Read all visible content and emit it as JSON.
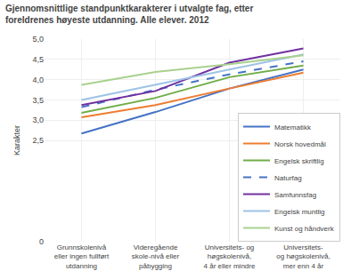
{
  "chart_data": {
    "type": "line",
    "title": "Gjennomsnittlige standpunktkarakterer i utvalgte fag, etter\nforeldrenes høyeste utdanning. Alle elever. 2012",
    "ylabel": "Karakter",
    "categories": [
      "Grunnskolenivå\neller ingen fullført\nutdanning",
      "Videregående\nskole-nivå eller\npåbygging",
      "Universitets- og\nhøgskolenivå,\n4 år eller mindre",
      "Universitets-\nog høgskolenivå,\nmer enn 4 år"
    ],
    "ylim": [
      0,
      5.0
    ],
    "yticks": [
      0,
      {
        "value": 2.5,
        "label": "2,5"
      },
      {
        "value": 3.0,
        "label": "3,0"
      },
      {
        "value": 3.5,
        "label": "3,5"
      },
      {
        "value": 4.0,
        "label": "4,0"
      },
      {
        "value": 4.5,
        "label": "4,5"
      },
      {
        "value": 5.0,
        "label": "5,0"
      }
    ],
    "grid": true,
    "legend": "lower right",
    "series": [
      {
        "name": "Matematikk",
        "color": "#4472C4",
        "line_style": "solid",
        "values": [
          2.67,
          3.2,
          3.78,
          4.25
        ]
      },
      {
        "name": "Norsk hovedmål",
        "color": "#ED7D31",
        "line_style": "solid",
        "values": [
          3.07,
          3.37,
          3.78,
          4.17
        ]
      },
      {
        "name": "Engelsk skriftlig",
        "color": "#70AD47",
        "line_style": "solid",
        "values": [
          3.18,
          3.55,
          4.06,
          4.35
        ]
      },
      {
        "name": "Naturfag",
        "color": "#4472C4",
        "line_style": "dashed",
        "values": [
          3.32,
          3.75,
          4.13,
          4.45
        ]
      },
      {
        "name": "Samfunnsfag",
        "color": "#7030A0",
        "line_style": "solid",
        "values": [
          3.37,
          3.72,
          4.42,
          4.77
        ]
      },
      {
        "name": "Engelsk muntlig",
        "color": "#9DC3E6",
        "line_style": "solid",
        "values": [
          3.5,
          3.88,
          4.25,
          4.62
        ]
      },
      {
        "name": "Kunst og håndverk",
        "color": "#A9D18E",
        "line_style": "solid",
        "values": [
          3.87,
          4.19,
          4.38,
          4.6
        ]
      }
    ]
  }
}
